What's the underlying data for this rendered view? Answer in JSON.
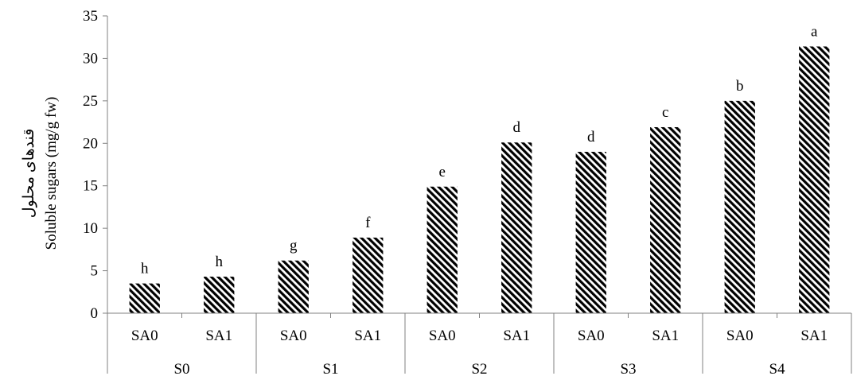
{
  "chart_data": {
    "type": "bar",
    "title": "",
    "ylabel_lines": [
      "قندهای محلول",
      "Soluble sugars (mg/g fw)"
    ],
    "ylim": [
      0,
      35
    ],
    "yticks": [
      0,
      5,
      10,
      15,
      20,
      25,
      30,
      35
    ],
    "grid": false,
    "legend": "none",
    "bar_pattern": "diagonal-hatch",
    "colors": {
      "bar_stripe": "#000000",
      "bar_background": "#ffffff",
      "axis": "#808080"
    },
    "groups": [
      {
        "label": "S0",
        "bars": [
          {
            "category": "SA0",
            "value": 3.5,
            "letter": "h"
          },
          {
            "category": "SA1",
            "value": 4.3,
            "letter": "h"
          }
        ]
      },
      {
        "label": "S1",
        "bars": [
          {
            "category": "SA0",
            "value": 6.2,
            "letter": "g"
          },
          {
            "category": "SA1",
            "value": 8.9,
            "letter": "f"
          }
        ]
      },
      {
        "label": "S2",
        "bars": [
          {
            "category": "SA0",
            "value": 14.9,
            "letter": "e"
          },
          {
            "category": "SA1",
            "value": 20.1,
            "letter": "d"
          }
        ]
      },
      {
        "label": "S3",
        "bars": [
          {
            "category": "SA0",
            "value": 19.0,
            "letter": "d"
          },
          {
            "category": "SA1",
            "value": 21.9,
            "letter": "c"
          }
        ]
      },
      {
        "label": "S4",
        "bars": [
          {
            "category": "SA0",
            "value": 25.0,
            "letter": "b"
          },
          {
            "category": "SA1",
            "value": 31.4,
            "letter": "a"
          }
        ]
      }
    ]
  }
}
